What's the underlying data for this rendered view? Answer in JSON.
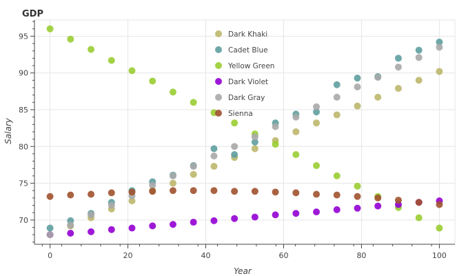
{
  "chart_data": {
    "type": "scatter",
    "title": "GDP",
    "xlabel": "Year",
    "ylabel": "Salary",
    "xlim": [
      -4,
      104
    ],
    "ylim": [
      66.7,
      97.2
    ],
    "x_ticks": [
      0,
      20,
      40,
      60,
      80,
      100
    ],
    "x_tick_labels": [
      "0",
      "20",
      "40",
      "60",
      "80",
      "100"
    ],
    "y_ticks": [
      70,
      75,
      80,
      85,
      90,
      95
    ],
    "y_tick_labels": [
      "70",
      "75",
      "80",
      "85",
      "90",
      "95"
    ],
    "grid": true,
    "legend_position": "top-center",
    "x": [
      0,
      5.26,
      10.53,
      15.79,
      21.05,
      26.32,
      31.58,
      36.84,
      42.11,
      47.37,
      52.63,
      57.89,
      63.16,
      68.42,
      73.68,
      78.95,
      84.21,
      89.47,
      94.74,
      100
    ],
    "series": [
      {
        "name": "Dark Khaki",
        "color": "#bdb76b",
        "values": [
          68.0,
          69.2,
          70.3,
          71.5,
          72.6,
          74.0,
          75.0,
          76.2,
          77.3,
          78.5,
          79.7,
          80.8,
          82.0,
          83.2,
          84.3,
          85.5,
          86.7,
          87.9,
          89.0,
          90.2
        ]
      },
      {
        "name": "Cadet Blue",
        "color": "#5f9ea0",
        "values": [
          68.9,
          69.9,
          70.9,
          72.4,
          74.0,
          75.2,
          76.1,
          77.4,
          79.7,
          78.9,
          80.6,
          83.2,
          84.4,
          84.7,
          88.4,
          89.3,
          89.5,
          92.0,
          93.1,
          94.2
        ]
      },
      {
        "name": "Yellow Green",
        "color": "#9acd32",
        "values": [
          96.0,
          94.6,
          93.2,
          91.7,
          90.3,
          88.9,
          87.4,
          86.0,
          84.6,
          83.2,
          81.7,
          80.3,
          78.9,
          77.4,
          76.0,
          74.6,
          73.2,
          71.7,
          70.3,
          68.9
        ]
      },
      {
        "name": "Dark Violet",
        "color": "#9400d3",
        "values": [
          68.0,
          68.2,
          68.4,
          68.7,
          68.9,
          69.2,
          69.4,
          69.7,
          69.9,
          70.2,
          70.4,
          70.7,
          70.9,
          71.1,
          71.4,
          71.6,
          71.9,
          72.1,
          72.4,
          72.6
        ]
      },
      {
        "name": "Dark Gray",
        "color": "#a9a9a9",
        "values": [
          68.0,
          69.3,
          70.7,
          72.0,
          73.3,
          74.7,
          76.0,
          77.3,
          78.7,
          80.0,
          81.3,
          82.7,
          84.0,
          85.4,
          86.7,
          88.1,
          89.4,
          90.8,
          92.1,
          93.5
        ]
      },
      {
        "name": "Sienna",
        "color": "#a0522d",
        "values": [
          73.2,
          73.4,
          73.5,
          73.7,
          73.8,
          73.9,
          74.0,
          74.0,
          74.0,
          73.9,
          73.9,
          73.8,
          73.7,
          73.5,
          73.4,
          73.2,
          73.0,
          72.7,
          72.4,
          72.1
        ]
      }
    ]
  }
}
